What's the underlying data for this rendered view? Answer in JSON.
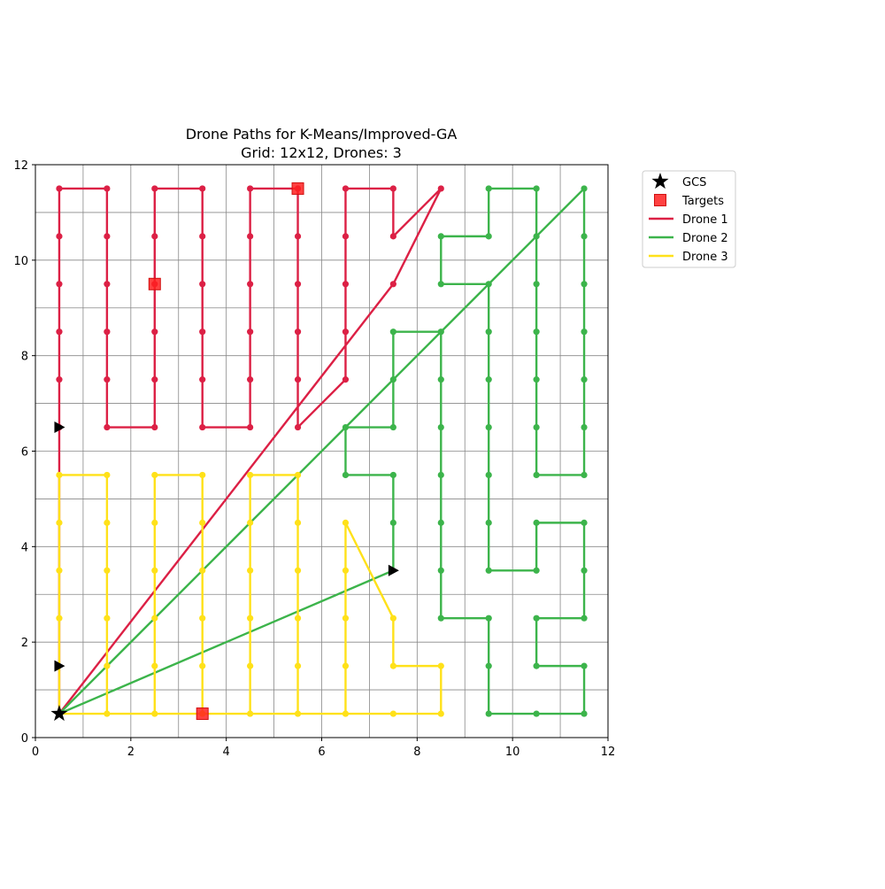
{
  "chart_data": {
    "type": "line",
    "title": "Drone Paths for K-Means/Improved-GA",
    "subtitle": "Grid: 12x12, Drones: 3",
    "xlabel": "",
    "ylabel": "",
    "xlim": [
      0,
      12
    ],
    "ylim": [
      0,
      12
    ],
    "xticks": [
      "0",
      "2",
      "4",
      "6",
      "8",
      "10",
      "12"
    ],
    "yticks": [
      "0",
      "2",
      "4",
      "6",
      "8",
      "10",
      "12"
    ],
    "grid": true,
    "grid_step": 1,
    "legend_position": "outside-top-right",
    "gcs": {
      "name": "GCS",
      "x": 0.5,
      "y": 0.5,
      "color": "#000000"
    },
    "targets": {
      "name": "Targets",
      "color": "#ff2020",
      "points": [
        [
          5.5,
          11.5
        ],
        [
          2.5,
          9.5
        ],
        [
          3.5,
          0.5
        ]
      ]
    },
    "direction_markers": {
      "color": "#000000",
      "points": [
        [
          0.5,
          6.5
        ],
        [
          0.5,
          1.5
        ],
        [
          7.5,
          3.5
        ]
      ]
    },
    "series": [
      {
        "name": "Drone 1",
        "color": "#dc2045",
        "path": [
          [
            0.5,
            0.5
          ],
          [
            0.5,
            5.5
          ],
          [
            0.5,
            6.5
          ],
          [
            0.5,
            7.5
          ],
          [
            0.5,
            8.5
          ],
          [
            0.5,
            9.5
          ],
          [
            0.5,
            10.5
          ],
          [
            0.5,
            11.5
          ],
          [
            1.5,
            11.5
          ],
          [
            1.5,
            10.5
          ],
          [
            1.5,
            9.5
          ],
          [
            1.5,
            8.5
          ],
          [
            1.5,
            7.5
          ],
          [
            1.5,
            6.5
          ],
          [
            2.5,
            6.5
          ],
          [
            2.5,
            7.5
          ],
          [
            2.5,
            8.5
          ],
          [
            2.5,
            9.5
          ],
          [
            2.5,
            10.5
          ],
          [
            2.5,
            11.5
          ],
          [
            3.5,
            11.5
          ],
          [
            3.5,
            10.5
          ],
          [
            3.5,
            9.5
          ],
          [
            3.5,
            8.5
          ],
          [
            3.5,
            7.5
          ],
          [
            3.5,
            6.5
          ],
          [
            4.5,
            6.5
          ],
          [
            4.5,
            7.5
          ],
          [
            4.5,
            8.5
          ],
          [
            4.5,
            9.5
          ],
          [
            4.5,
            10.5
          ],
          [
            4.5,
            11.5
          ],
          [
            5.5,
            11.5
          ],
          [
            5.5,
            10.5
          ],
          [
            5.5,
            9.5
          ],
          [
            5.5,
            8.5
          ],
          [
            5.5,
            7.5
          ],
          [
            5.5,
            6.5
          ],
          [
            6.5,
            7.5
          ],
          [
            6.5,
            8.5
          ],
          [
            6.5,
            9.5
          ],
          [
            6.5,
            10.5
          ],
          [
            6.5,
            11.5
          ],
          [
            7.5,
            11.5
          ],
          [
            7.5,
            10.5
          ],
          [
            8.5,
            11.5
          ],
          [
            7.5,
            9.5
          ],
          [
            0.5,
            0.5
          ]
        ],
        "markers": [
          [
            0.5,
            6.5
          ],
          [
            0.5,
            7.5
          ],
          [
            0.5,
            8.5
          ],
          [
            0.5,
            9.5
          ],
          [
            0.5,
            10.5
          ],
          [
            0.5,
            11.5
          ],
          [
            1.5,
            11.5
          ],
          [
            1.5,
            10.5
          ],
          [
            1.5,
            9.5
          ],
          [
            1.5,
            8.5
          ],
          [
            1.5,
            7.5
          ],
          [
            1.5,
            6.5
          ],
          [
            2.5,
            6.5
          ],
          [
            2.5,
            7.5
          ],
          [
            2.5,
            8.5
          ],
          [
            2.5,
            9.5
          ],
          [
            2.5,
            10.5
          ],
          [
            2.5,
            11.5
          ],
          [
            3.5,
            11.5
          ],
          [
            3.5,
            10.5
          ],
          [
            3.5,
            9.5
          ],
          [
            3.5,
            8.5
          ],
          [
            3.5,
            7.5
          ],
          [
            3.5,
            6.5
          ],
          [
            4.5,
            6.5
          ],
          [
            4.5,
            7.5
          ],
          [
            4.5,
            8.5
          ],
          [
            4.5,
            9.5
          ],
          [
            4.5,
            10.5
          ],
          [
            4.5,
            11.5
          ],
          [
            5.5,
            11.5
          ],
          [
            5.5,
            10.5
          ],
          [
            5.5,
            9.5
          ],
          [
            5.5,
            8.5
          ],
          [
            5.5,
            7.5
          ],
          [
            5.5,
            6.5
          ],
          [
            6.5,
            7.5
          ],
          [
            6.5,
            8.5
          ],
          [
            6.5,
            9.5
          ],
          [
            6.5,
            10.5
          ],
          [
            6.5,
            11.5
          ],
          [
            7.5,
            11.5
          ],
          [
            7.5,
            10.5
          ],
          [
            8.5,
            11.5
          ],
          [
            7.5,
            9.5
          ]
        ]
      },
      {
        "name": "Drone 2",
        "color": "#3cb44b",
        "path": [
          [
            0.5,
            0.5
          ],
          [
            7.5,
            3.5
          ],
          [
            7.5,
            4.5
          ],
          [
            7.5,
            5.5
          ],
          [
            6.5,
            5.5
          ],
          [
            6.5,
            6.5
          ],
          [
            7.5,
            6.5
          ],
          [
            7.5,
            7.5
          ],
          [
            7.5,
            8.5
          ],
          [
            8.5,
            8.5
          ],
          [
            8.5,
            7.5
          ],
          [
            8.5,
            6.5
          ],
          [
            8.5,
            5.5
          ],
          [
            8.5,
            4.5
          ],
          [
            8.5,
            3.5
          ],
          [
            8.5,
            2.5
          ],
          [
            9.5,
            2.5
          ],
          [
            9.5,
            1.5
          ],
          [
            9.5,
            0.5
          ],
          [
            10.5,
            0.5
          ],
          [
            11.5,
            0.5
          ],
          [
            11.5,
            1.5
          ],
          [
            10.5,
            1.5
          ],
          [
            10.5,
            2.5
          ],
          [
            11.5,
            2.5
          ],
          [
            11.5,
            3.5
          ],
          [
            11.5,
            4.5
          ],
          [
            10.5,
            4.5
          ],
          [
            10.5,
            3.5
          ],
          [
            9.5,
            3.5
          ],
          [
            9.5,
            4.5
          ],
          [
            9.5,
            5.5
          ],
          [
            9.5,
            6.5
          ],
          [
            9.5,
            7.5
          ],
          [
            9.5,
            8.5
          ],
          [
            9.5,
            9.5
          ],
          [
            8.5,
            9.5
          ],
          [
            8.5,
            10.5
          ],
          [
            9.5,
            10.5
          ],
          [
            9.5,
            11.5
          ],
          [
            10.5,
            11.5
          ],
          [
            10.5,
            10.5
          ],
          [
            10.5,
            9.5
          ],
          [
            10.5,
            8.5
          ],
          [
            10.5,
            7.5
          ],
          [
            10.5,
            6.5
          ],
          [
            10.5,
            5.5
          ],
          [
            11.5,
            5.5
          ],
          [
            11.5,
            6.5
          ],
          [
            11.5,
            7.5
          ],
          [
            11.5,
            8.5
          ],
          [
            11.5,
            9.5
          ],
          [
            11.5,
            10.5
          ],
          [
            11.5,
            11.5
          ],
          [
            0.5,
            0.5
          ]
        ],
        "markers": [
          [
            7.5,
            4.5
          ],
          [
            7.5,
            5.5
          ],
          [
            6.5,
            5.5
          ],
          [
            6.5,
            6.5
          ],
          [
            7.5,
            6.5
          ],
          [
            7.5,
            7.5
          ],
          [
            7.5,
            8.5
          ],
          [
            8.5,
            8.5
          ],
          [
            8.5,
            7.5
          ],
          [
            8.5,
            6.5
          ],
          [
            8.5,
            5.5
          ],
          [
            8.5,
            4.5
          ],
          [
            8.5,
            3.5
          ],
          [
            8.5,
            2.5
          ],
          [
            9.5,
            2.5
          ],
          [
            9.5,
            1.5
          ],
          [
            9.5,
            0.5
          ],
          [
            10.5,
            0.5
          ],
          [
            11.5,
            0.5
          ],
          [
            11.5,
            1.5
          ],
          [
            10.5,
            1.5
          ],
          [
            10.5,
            2.5
          ],
          [
            11.5,
            2.5
          ],
          [
            11.5,
            3.5
          ],
          [
            11.5,
            4.5
          ],
          [
            10.5,
            4.5
          ],
          [
            10.5,
            3.5
          ],
          [
            9.5,
            3.5
          ],
          [
            9.5,
            4.5
          ],
          [
            9.5,
            5.5
          ],
          [
            9.5,
            6.5
          ],
          [
            9.5,
            7.5
          ],
          [
            9.5,
            8.5
          ],
          [
            9.5,
            9.5
          ],
          [
            8.5,
            9.5
          ],
          [
            8.5,
            10.5
          ],
          [
            9.5,
            10.5
          ],
          [
            9.5,
            11.5
          ],
          [
            10.5,
            11.5
          ],
          [
            10.5,
            10.5
          ],
          [
            10.5,
            9.5
          ],
          [
            10.5,
            8.5
          ],
          [
            10.5,
            7.5
          ],
          [
            10.5,
            6.5
          ],
          [
            10.5,
            5.5
          ],
          [
            11.5,
            5.5
          ],
          [
            11.5,
            6.5
          ],
          [
            11.5,
            7.5
          ],
          [
            11.5,
            8.5
          ],
          [
            11.5,
            9.5
          ],
          [
            11.5,
            10.5
          ],
          [
            11.5,
            11.5
          ]
        ]
      },
      {
        "name": "Drone 3",
        "color": "#ffe119",
        "path": [
          [
            0.5,
            0.5
          ],
          [
            0.5,
            1.5
          ],
          [
            0.5,
            2.5
          ],
          [
            0.5,
            3.5
          ],
          [
            0.5,
            4.5
          ],
          [
            0.5,
            5.5
          ],
          [
            1.5,
            5.5
          ],
          [
            1.5,
            4.5
          ],
          [
            1.5,
            3.5
          ],
          [
            1.5,
            2.5
          ],
          [
            1.5,
            1.5
          ],
          [
            1.5,
            0.5
          ],
          [
            2.5,
            0.5
          ],
          [
            2.5,
            1.5
          ],
          [
            2.5,
            2.5
          ],
          [
            2.5,
            3.5
          ],
          [
            2.5,
            4.5
          ],
          [
            2.5,
            5.5
          ],
          [
            3.5,
            5.5
          ],
          [
            3.5,
            4.5
          ],
          [
            3.5,
            3.5
          ],
          [
            3.5,
            2.5
          ],
          [
            3.5,
            1.5
          ],
          [
            3.5,
            0.5
          ],
          [
            4.5,
            0.5
          ],
          [
            4.5,
            1.5
          ],
          [
            4.5,
            2.5
          ],
          [
            4.5,
            3.5
          ],
          [
            4.5,
            4.5
          ],
          [
            4.5,
            5.5
          ],
          [
            5.5,
            5.5
          ],
          [
            5.5,
            4.5
          ],
          [
            5.5,
            3.5
          ],
          [
            5.5,
            2.5
          ],
          [
            5.5,
            1.5
          ],
          [
            5.5,
            0.5
          ],
          [
            6.5,
            0.5
          ],
          [
            6.5,
            1.5
          ],
          [
            6.5,
            2.5
          ],
          [
            6.5,
            3.5
          ],
          [
            6.5,
            4.5
          ],
          [
            7.5,
            2.5
          ],
          [
            7.5,
            1.5
          ],
          [
            8.5,
            1.5
          ],
          [
            8.5,
            0.5
          ],
          [
            7.5,
            0.5
          ],
          [
            6.5,
            0.5
          ],
          [
            5.5,
            0.5
          ],
          [
            4.5,
            0.5
          ],
          [
            3.5,
            0.5
          ],
          [
            2.5,
            0.5
          ],
          [
            1.5,
            0.5
          ],
          [
            0.5,
            0.5
          ]
        ],
        "markers": [
          [
            0.5,
            2.5
          ],
          [
            0.5,
            3.5
          ],
          [
            0.5,
            4.5
          ],
          [
            0.5,
            5.5
          ],
          [
            1.5,
            5.5
          ],
          [
            1.5,
            4.5
          ],
          [
            1.5,
            3.5
          ],
          [
            1.5,
            2.5
          ],
          [
            1.5,
            1.5
          ],
          [
            1.5,
            0.5
          ],
          [
            2.5,
            0.5
          ],
          [
            2.5,
            1.5
          ],
          [
            2.5,
            2.5
          ],
          [
            2.5,
            3.5
          ],
          [
            2.5,
            4.5
          ],
          [
            2.5,
            5.5
          ],
          [
            3.5,
            5.5
          ],
          [
            3.5,
            4.5
          ],
          [
            3.5,
            3.5
          ],
          [
            3.5,
            2.5
          ],
          [
            3.5,
            1.5
          ],
          [
            3.5,
            0.5
          ],
          [
            4.5,
            0.5
          ],
          [
            4.5,
            1.5
          ],
          [
            4.5,
            2.5
          ],
          [
            4.5,
            3.5
          ],
          [
            4.5,
            4.5
          ],
          [
            4.5,
            5.5
          ],
          [
            5.5,
            5.5
          ],
          [
            5.5,
            4.5
          ],
          [
            5.5,
            3.5
          ],
          [
            5.5,
            2.5
          ],
          [
            5.5,
            1.5
          ],
          [
            5.5,
            0.5
          ],
          [
            6.5,
            0.5
          ],
          [
            6.5,
            1.5
          ],
          [
            6.5,
            2.5
          ],
          [
            6.5,
            3.5
          ],
          [
            6.5,
            4.5
          ],
          [
            7.5,
            2.5
          ],
          [
            7.5,
            1.5
          ],
          [
            8.5,
            1.5
          ],
          [
            8.5,
            0.5
          ],
          [
            7.5,
            0.5
          ]
        ]
      }
    ]
  }
}
